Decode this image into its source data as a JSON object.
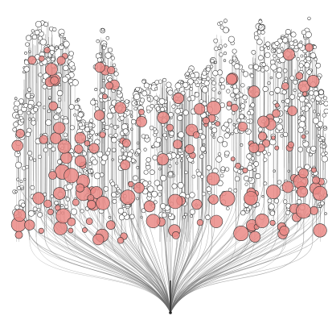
{
  "figure": {
    "kind": "radial-tree-burst",
    "colors": {
      "background": "#ffffff",
      "edge": "#6b6b6b",
      "node_fill_plain": "#ffffff",
      "node_fill_highlight": "#ea8a86",
      "node_stroke": "#333333"
    }
  }
}
